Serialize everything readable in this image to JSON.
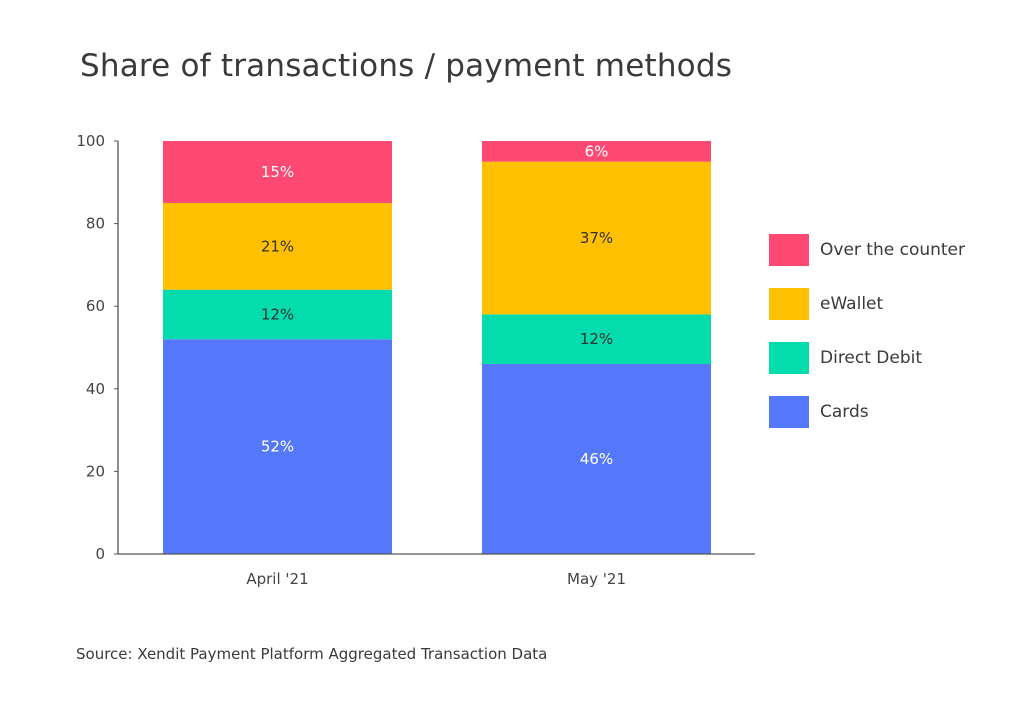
{
  "title": "Share of transactions / payment methods",
  "source": "Source: Xendit Payment Platform Aggregated Transaction Data",
  "colors": {
    "Cards": "#5578fa",
    "Direct Debit": "#05dcae",
    "eWallet": "#fec000",
    "Over the counter": "#fe4a73",
    "axis": "#555555"
  },
  "chart_data": {
    "type": "bar",
    "stacked": true,
    "categories": [
      "April '21",
      "May '21"
    ],
    "ylim": [
      0,
      100
    ],
    "yticks": [
      "0",
      "20",
      "40",
      "60",
      "80",
      "100"
    ],
    "xlabel": "",
    "ylabel": "",
    "grid": false,
    "legend_position": "right",
    "series": [
      {
        "name": "Cards",
        "values": [
          52,
          46
        ],
        "labels": [
          "52%",
          "46%"
        ],
        "label_color": "#ffffff"
      },
      {
        "name": "Direct Debit",
        "values": [
          12,
          12
        ],
        "labels": [
          "12%",
          "12%"
        ],
        "label_color": "#333333"
      },
      {
        "name": "eWallet",
        "values": [
          21,
          37
        ],
        "labels": [
          "21%",
          "37%"
        ],
        "label_color": "#333333"
      },
      {
        "name": "Over the counter",
        "values": [
          15,
          6
        ],
        "labels": [
          "15%",
          "6%"
        ],
        "label_color": "#ffffff"
      }
    ],
    "legend_order": [
      "Over the counter",
      "eWallet",
      "Direct Debit",
      "Cards"
    ]
  }
}
